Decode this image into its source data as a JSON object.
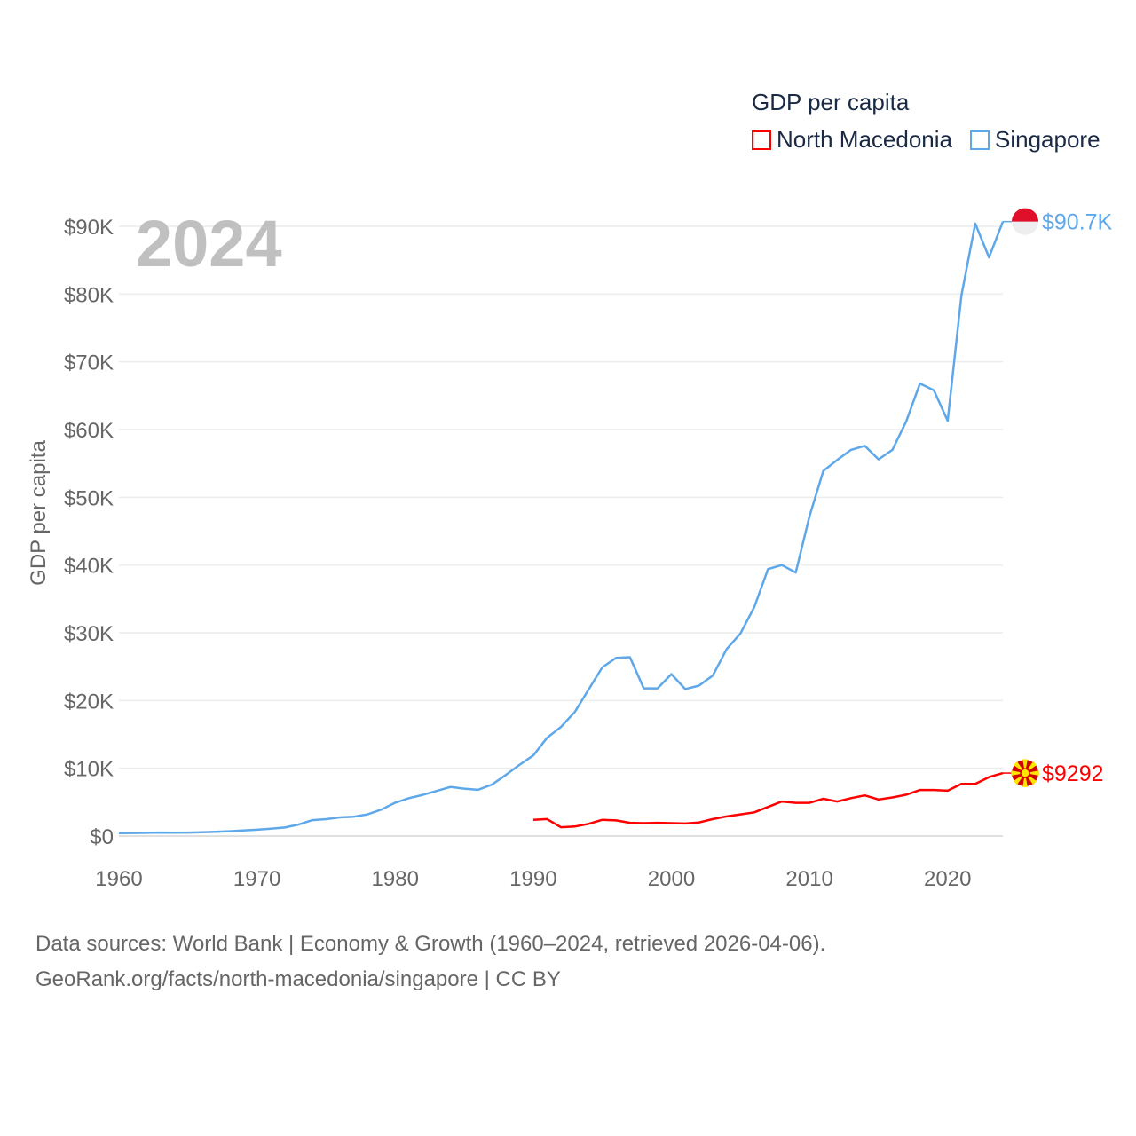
{
  "chart_data": {
    "type": "line",
    "title": "GDP per capita",
    "xlabel": "",
    "ylabel": "GDP per capita",
    "xlim": [
      1960,
      2024
    ],
    "ylim": [
      0,
      90000
    ],
    "x_ticks": [
      "1960",
      "1970",
      "1980",
      "1990",
      "2000",
      "2010",
      "2020"
    ],
    "y_ticks": [
      "$0",
      "$10K",
      "$20K",
      "$30K",
      "$40K",
      "$50K",
      "$60K",
      "$70K",
      "$80K",
      "$90K"
    ],
    "grid": true,
    "legend_placement": "top-right",
    "current_year": "2024",
    "series": [
      {
        "name": "North Macedonia",
        "color": "#ff0000",
        "start_year": 1990,
        "end_label": "$9292",
        "values": [
          2400,
          2500,
          1300,
          1400,
          1800,
          2400,
          2300,
          1950,
          1900,
          1950,
          1900,
          1850,
          2000,
          2500,
          2900,
          3200,
          3500,
          4300,
          5100,
          4900,
          4900,
          5500,
          5100,
          5600,
          6000,
          5400,
          5700,
          6100,
          6800,
          6800,
          6700,
          7700,
          7700,
          8700,
          9292
        ]
      },
      {
        "name": "Singapore",
        "color": "#5ea8ea",
        "start_year": 1960,
        "end_label": "$90.7K",
        "values": [
          428,
          449,
          472,
          511,
          485,
          517,
          567,
          626,
          708,
          813,
          925,
          1070,
          1260,
          1690,
          2340,
          2490,
          2750,
          2850,
          3190,
          3900,
          4930,
          5600,
          6080,
          6650,
          7240,
          6990,
          6830,
          7580,
          9000,
          10500,
          11900,
          14500,
          16100,
          18300,
          21600,
          24900,
          26300,
          26400,
          21800,
          21800,
          23900,
          21700,
          22200,
          23700,
          27600,
          29900,
          33800,
          39400,
          40000,
          38900,
          47200,
          53900,
          55500,
          57000,
          57600,
          55600,
          57000,
          61200,
          66800,
          65800,
          61300,
          79800,
          90400,
          85400,
          90700
        ]
      }
    ]
  },
  "footer": {
    "line1": "Data sources: World Bank | Economy & Growth (1960–2024, retrieved 2026-04-06).",
    "line2": "GeoRank.org/facts/north-macedonia/singapore | CC BY"
  }
}
